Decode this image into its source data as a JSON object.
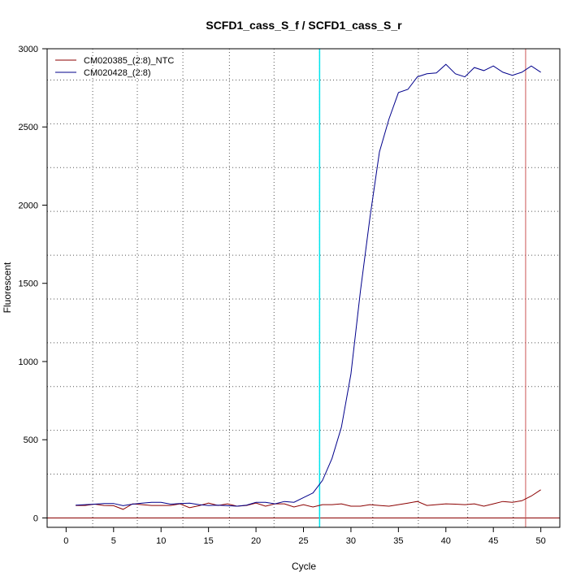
{
  "chart_data": {
    "type": "line",
    "title": "SCFD1_cass_S_f / SCFD1_cass_S_r",
    "xlabel": "Cycle",
    "ylabel": "Fluorescent",
    "xlim": [
      -2,
      52
    ],
    "ylim": [
      -60,
      3000
    ],
    "x_ticks": [
      "0",
      "5",
      "10",
      "15",
      "20",
      "25",
      "30",
      "35",
      "40",
      "45",
      "50"
    ],
    "y_ticks": [
      "0",
      "500",
      "1000",
      "1500",
      "2000",
      "2500",
      "3000"
    ],
    "x": [
      1,
      2,
      3,
      4,
      5,
      6,
      7,
      8,
      9,
      10,
      11,
      12,
      13,
      14,
      15,
      16,
      17,
      18,
      19,
      20,
      21,
      22,
      23,
      24,
      25,
      26,
      27,
      28,
      29,
      30,
      31,
      32,
      33,
      34,
      35,
      36,
      37,
      38,
      39,
      40,
      41,
      42,
      43,
      44,
      45,
      46,
      47,
      48,
      49,
      50
    ],
    "series": [
      {
        "name": "CM020385_(2:8)_NTC",
        "color": "#8b0000",
        "values": [
          80,
          80,
          88,
          80,
          78,
          55,
          90,
          85,
          80,
          80,
          80,
          90,
          65,
          78,
          95,
          80,
          90,
          75,
          80,
          95,
          75,
          90,
          90,
          70,
          85,
          70,
          85,
          85,
          90,
          75,
          75,
          85,
          80,
          75,
          85,
          95,
          105,
          80,
          85,
          90,
          88,
          85,
          90,
          75,
          90,
          105,
          100,
          110,
          140,
          180
        ]
      },
      {
        "name": "CM020428_(2:8)",
        "color": "#00008b",
        "values": [
          82,
          85,
          88,
          92,
          92,
          78,
          88,
          95,
          100,
          100,
          88,
          92,
          95,
          85,
          80,
          82,
          78,
          75,
          82,
          100,
          100,
          90,
          105,
          100,
          130,
          160,
          240,
          380,
          580,
          920,
          1450,
          1920,
          2340,
          2550,
          2720,
          2740,
          2820,
          2840,
          2845,
          2900,
          2840,
          2820,
          2880,
          2860,
          2890,
          2850,
          2830,
          2850,
          2890,
          2850
        ]
      }
    ],
    "vertical_lines": [
      {
        "x": 26.7,
        "color": "#00e5ee"
      },
      {
        "x": 48.4,
        "color": "#cd5555"
      }
    ],
    "horizontal_line": {
      "y": 0,
      "color": "#8b0000"
    },
    "grid": true,
    "legend": "top-left"
  }
}
